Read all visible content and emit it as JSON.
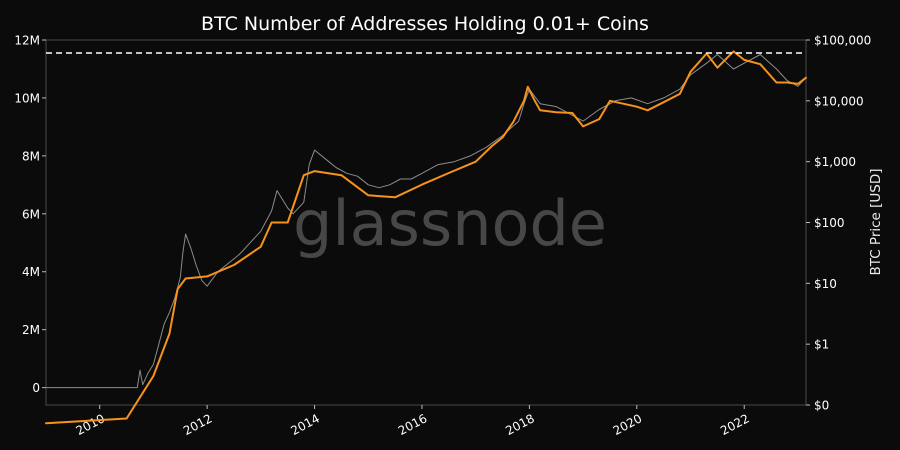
{
  "chart_data": {
    "type": "line",
    "title": "BTC Number of Addresses Holding 0.01+ Coins",
    "xlabel": "",
    "ylabel_left": "",
    "ylabel_right": "BTC Price [USD]",
    "watermark": "glassnode",
    "xlim": [
      2009.0,
      2023.15
    ],
    "ylim_left": [
      -600000,
      12000000
    ],
    "ylim_right_log10": [
      -1.0,
      5.0
    ],
    "x_ticks": [
      {
        "value": 2010,
        "label": "2010"
      },
      {
        "value": 2012,
        "label": "2012"
      },
      {
        "value": 2014,
        "label": "2014"
      },
      {
        "value": 2016,
        "label": "2016"
      },
      {
        "value": 2018,
        "label": "2018"
      },
      {
        "value": 2020,
        "label": "2020"
      },
      {
        "value": 2022,
        "label": "2022"
      }
    ],
    "y_ticks_left": [
      {
        "value": 0,
        "label": "0"
      },
      {
        "value": 2000000,
        "label": "2M"
      },
      {
        "value": 4000000,
        "label": "4M"
      },
      {
        "value": 6000000,
        "label": "6M"
      },
      {
        "value": 8000000,
        "label": "8M"
      },
      {
        "value": 10000000,
        "label": "10M"
      },
      {
        "value": 12000000,
        "label": "12M"
      }
    ],
    "y_ticks_right": [
      {
        "value": 0.1,
        "label": "$0"
      },
      {
        "value": 1,
        "label": "$1"
      },
      {
        "value": 10,
        "label": "$10"
      },
      {
        "value": 100,
        "label": "$100"
      },
      {
        "value": 1000,
        "label": "$1,000"
      },
      {
        "value": 10000,
        "label": "$10,000"
      },
      {
        "value": 100000,
        "label": "$100,000"
      }
    ],
    "reference_line": {
      "axis": "left",
      "value": 11550000,
      "style": "dashed",
      "color": "#ffffff"
    },
    "series": [
      {
        "name": "Addresses Holding 0.01+ Coins",
        "axis": "left",
        "color": "#8c8c8c",
        "x": [
          2009.0,
          2010.7,
          2010.75,
          2010.8,
          2010.9,
          2011.0,
          2011.1,
          2011.2,
          2011.3,
          2011.4,
          2011.5,
          2011.55,
          2011.6,
          2011.7,
          2011.8,
          2011.9,
          2012.0,
          2012.2,
          2012.4,
          2012.6,
          2012.8,
          2013.0,
          2013.2,
          2013.3,
          2013.5,
          2013.6,
          2013.8,
          2013.9,
          2014.0,
          2014.2,
          2014.4,
          2014.6,
          2014.8,
          2015.0,
          2015.2,
          2015.4,
          2015.6,
          2015.8,
          2016.0,
          2016.3,
          2016.6,
          2016.9,
          2017.2,
          2017.5,
          2017.8,
          2017.9,
          2018.0,
          2018.2,
          2018.5,
          2018.8,
          2019.0,
          2019.3,
          2019.6,
          2019.9,
          2020.2,
          2020.5,
          2020.8,
          2021.0,
          2021.3,
          2021.5,
          2021.8,
          2022.0,
          2022.3,
          2022.6,
          2022.8,
          2023.0,
          2023.15
        ],
        "values": [
          0,
          0,
          600000,
          100000,
          500000,
          800000,
          1500000,
          2200000,
          2600000,
          3100000,
          3800000,
          4700000,
          5300000,
          4800000,
          4200000,
          3700000,
          3500000,
          4000000,
          4300000,
          4600000,
          5000000,
          5400000,
          6100000,
          6800000,
          6200000,
          6000000,
          6400000,
          7700000,
          8200000,
          7900000,
          7600000,
          7400000,
          7300000,
          7000000,
          6900000,
          7000000,
          7200000,
          7200000,
          7400000,
          7700000,
          7800000,
          8000000,
          8300000,
          8700000,
          9200000,
          9800000,
          10300000,
          9800000,
          9700000,
          9400000,
          9200000,
          9600000,
          9900000,
          10000000,
          9800000,
          10000000,
          10300000,
          10800000,
          11200000,
          11500000,
          11000000,
          11200000,
          11500000,
          11000000,
          10600000,
          10400000,
          10700000
        ]
      },
      {
        "name": "BTC Price",
        "axis": "right",
        "color": "#f7931a",
        "x": [
          2009.0,
          2010.5,
          2011.0,
          2011.3,
          2011.45,
          2011.6,
          2012.0,
          2012.5,
          2013.0,
          2013.2,
          2013.5,
          2013.8,
          2014.0,
          2014.5,
          2015.0,
          2015.5,
          2016.0,
          2016.5,
          2017.0,
          2017.3,
          2017.5,
          2017.7,
          2017.9,
          2017.97,
          2018.1,
          2018.2,
          2018.5,
          2018.8,
          2019.0,
          2019.3,
          2019.5,
          2020.0,
          2020.2,
          2020.5,
          2020.8,
          2021.0,
          2021.3,
          2021.5,
          2021.8,
          2022.0,
          2022.3,
          2022.6,
          2022.8,
          2023.0,
          2023.15
        ],
        "values": [
          0.05,
          0.06,
          0.3,
          1.5,
          8,
          12,
          13,
          20,
          40,
          100,
          100,
          600,
          700,
          600,
          280,
          260,
          420,
          650,
          1000,
          1800,
          2500,
          4500,
          10000,
          17000,
          10000,
          7000,
          6500,
          6300,
          3800,
          5000,
          10000,
          8000,
          7000,
          9500,
          13000,
          30000,
          60000,
          35000,
          65000,
          47000,
          40000,
          20000,
          20000,
          19000,
          24000
        ]
      }
    ]
  }
}
